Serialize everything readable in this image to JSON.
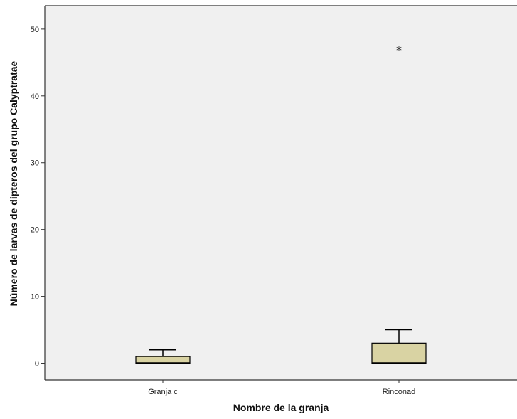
{
  "chart_data": {
    "type": "boxplot",
    "xlabel": "Nombre de la granja",
    "ylabel": "Número de larvas de dipteros del grupo Calyptratae",
    "ylim": [
      -2.5,
      53.5
    ],
    "yticks": [
      0,
      10,
      20,
      30,
      40,
      50
    ],
    "grid": false,
    "legend": "none",
    "colors": {
      "plot_background": "#f0f0f0",
      "box_fill": "#d9d3a3",
      "line": "#000000"
    },
    "categories": [
      "Granja c",
      "Rinconad"
    ],
    "boxes": [
      {
        "category": "Granja c",
        "whisker_low": 0,
        "q1": 0,
        "median": 0,
        "q3": 1,
        "whisker_high": 2,
        "outliers": []
      },
      {
        "category": "Rinconad",
        "whisker_low": 0,
        "q1": 0,
        "median": 0,
        "q3": 3,
        "whisker_high": 5,
        "outliers": [
          {
            "value": 47,
            "symbol": "*"
          }
        ]
      }
    ]
  }
}
